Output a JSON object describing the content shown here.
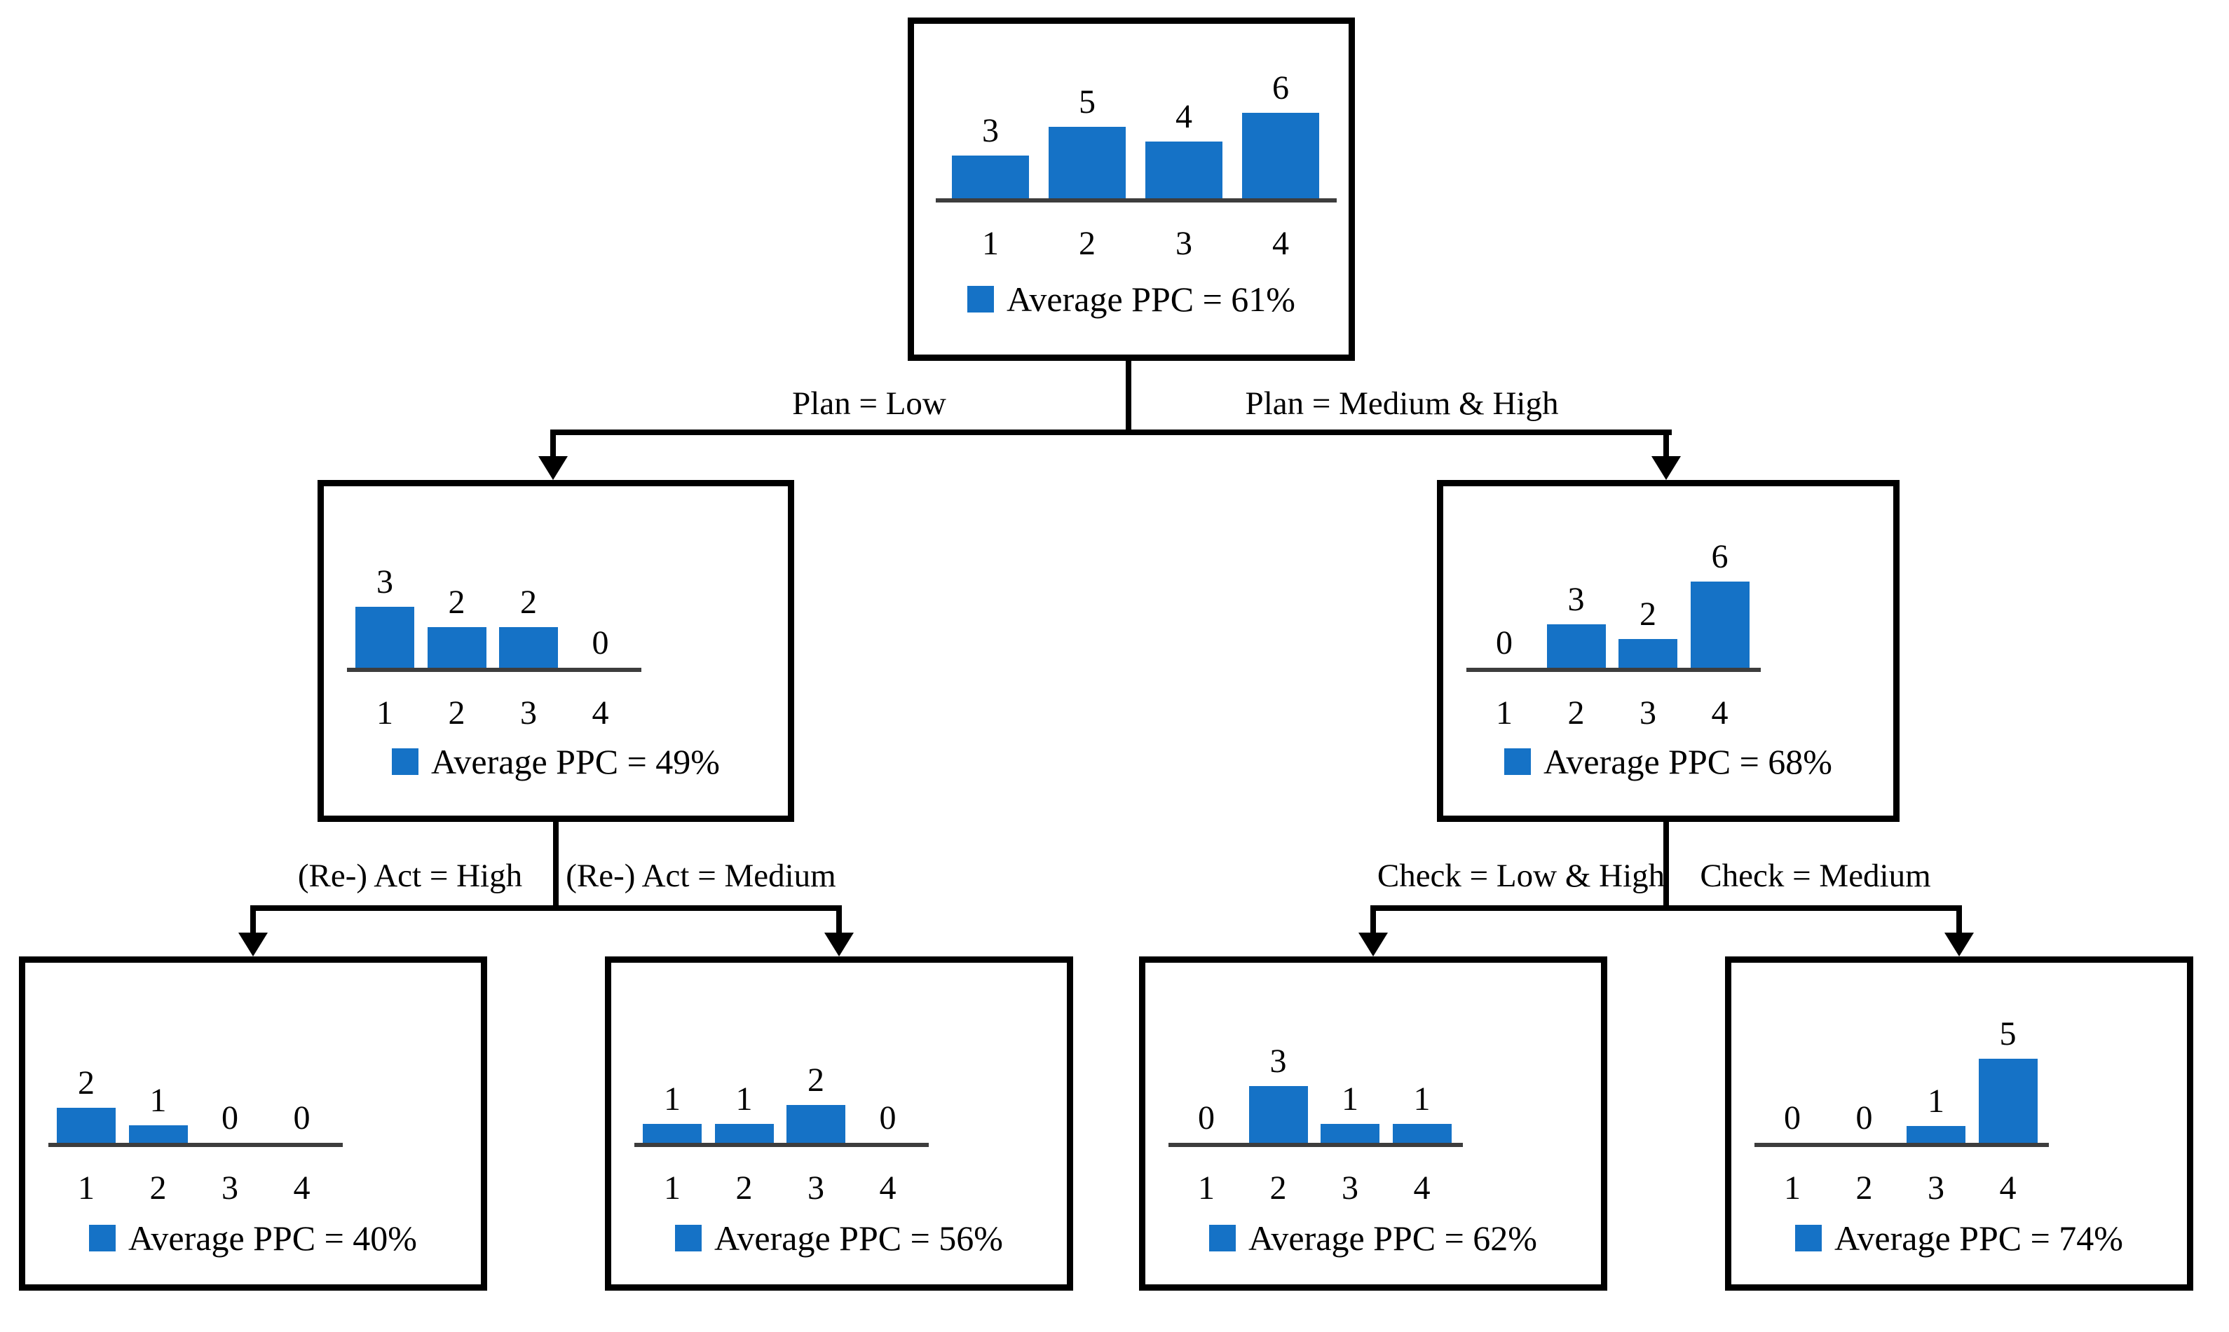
{
  "diagram": {
    "type": "decision-tree",
    "bar_color": "#1572C6",
    "axis_color": "#3d3d3d",
    "box_border_color": "#000000",
    "nodes": [
      {
        "id": "root",
        "legend": "Average PPC = 61%"
      },
      {
        "id": "plan-low",
        "legend": "Average PPC = 49%"
      },
      {
        "id": "plan-medium-high",
        "legend": "Average PPC = 68%"
      },
      {
        "id": "react-high",
        "legend": "Average PPC = 40%"
      },
      {
        "id": "react-medium",
        "legend": "Average PPC = 56%"
      },
      {
        "id": "check-low-high",
        "legend": "Average PPC = 62%"
      },
      {
        "id": "check-medium",
        "legend": "Average PPC = 74%"
      }
    ],
    "edges": [
      {
        "label": "Plan = Low",
        "from": "root",
        "to": "plan-low"
      },
      {
        "label": "Plan = Medium & High",
        "from": "root",
        "to": "plan-medium-high"
      },
      {
        "label": "(Re-) Act = High",
        "from": "plan-low",
        "to": "react-high"
      },
      {
        "label": "(Re-) Act = Medium",
        "from": "plan-low",
        "to": "react-medium"
      },
      {
        "label": "Check = Low & High",
        "from": "plan-medium-high",
        "to": "check-low-high"
      },
      {
        "label": "Check = Medium",
        "from": "plan-medium-high",
        "to": "check-medium"
      }
    ]
  },
  "chart_data": [
    {
      "type": "bar",
      "categories": [
        "1",
        "2",
        "3",
        "4"
      ],
      "values": [
        3,
        5,
        4,
        6
      ],
      "legend": "Average PPC = 61%",
      "ylim": [
        0,
        6
      ],
      "grid": false,
      "y_axis_shown": false
    },
    {
      "type": "bar",
      "categories": [
        "1",
        "2",
        "3",
        "4"
      ],
      "values": [
        3,
        2,
        2,
        0
      ],
      "legend": "Average PPC = 49%",
      "ylim": [
        0,
        3
      ],
      "grid": false,
      "y_axis_shown": false
    },
    {
      "type": "bar",
      "categories": [
        "1",
        "2",
        "3",
        "4"
      ],
      "values": [
        0,
        3,
        2,
        6
      ],
      "legend": "Average PPC = 68%",
      "ylim": [
        0,
        6
      ],
      "grid": false,
      "y_axis_shown": false
    },
    {
      "type": "bar",
      "categories": [
        "1",
        "2",
        "3",
        "4"
      ],
      "values": [
        2,
        1,
        0,
        0
      ],
      "legend": "Average PPC = 40%",
      "ylim": [
        0,
        2
      ],
      "grid": false,
      "y_axis_shown": false
    },
    {
      "type": "bar",
      "categories": [
        "1",
        "2",
        "3",
        "4"
      ],
      "values": [
        1,
        1,
        2,
        0
      ],
      "legend": "Average PPC = 56%",
      "ylim": [
        0,
        2
      ],
      "grid": false,
      "y_axis_shown": false
    },
    {
      "type": "bar",
      "categories": [
        "1",
        "2",
        "3",
        "4"
      ],
      "values": [
        0,
        3,
        1,
        1
      ],
      "legend": "Average PPC = 62%",
      "ylim": [
        0,
        3
      ],
      "grid": false,
      "y_axis_shown": false
    },
    {
      "type": "bar",
      "categories": [
        "1",
        "2",
        "3",
        "4"
      ],
      "values": [
        0,
        0,
        1,
        5
      ],
      "legend": "Average PPC = 74%",
      "ylim": [
        0,
        5
      ],
      "grid": false,
      "y_axis_shown": false
    }
  ]
}
